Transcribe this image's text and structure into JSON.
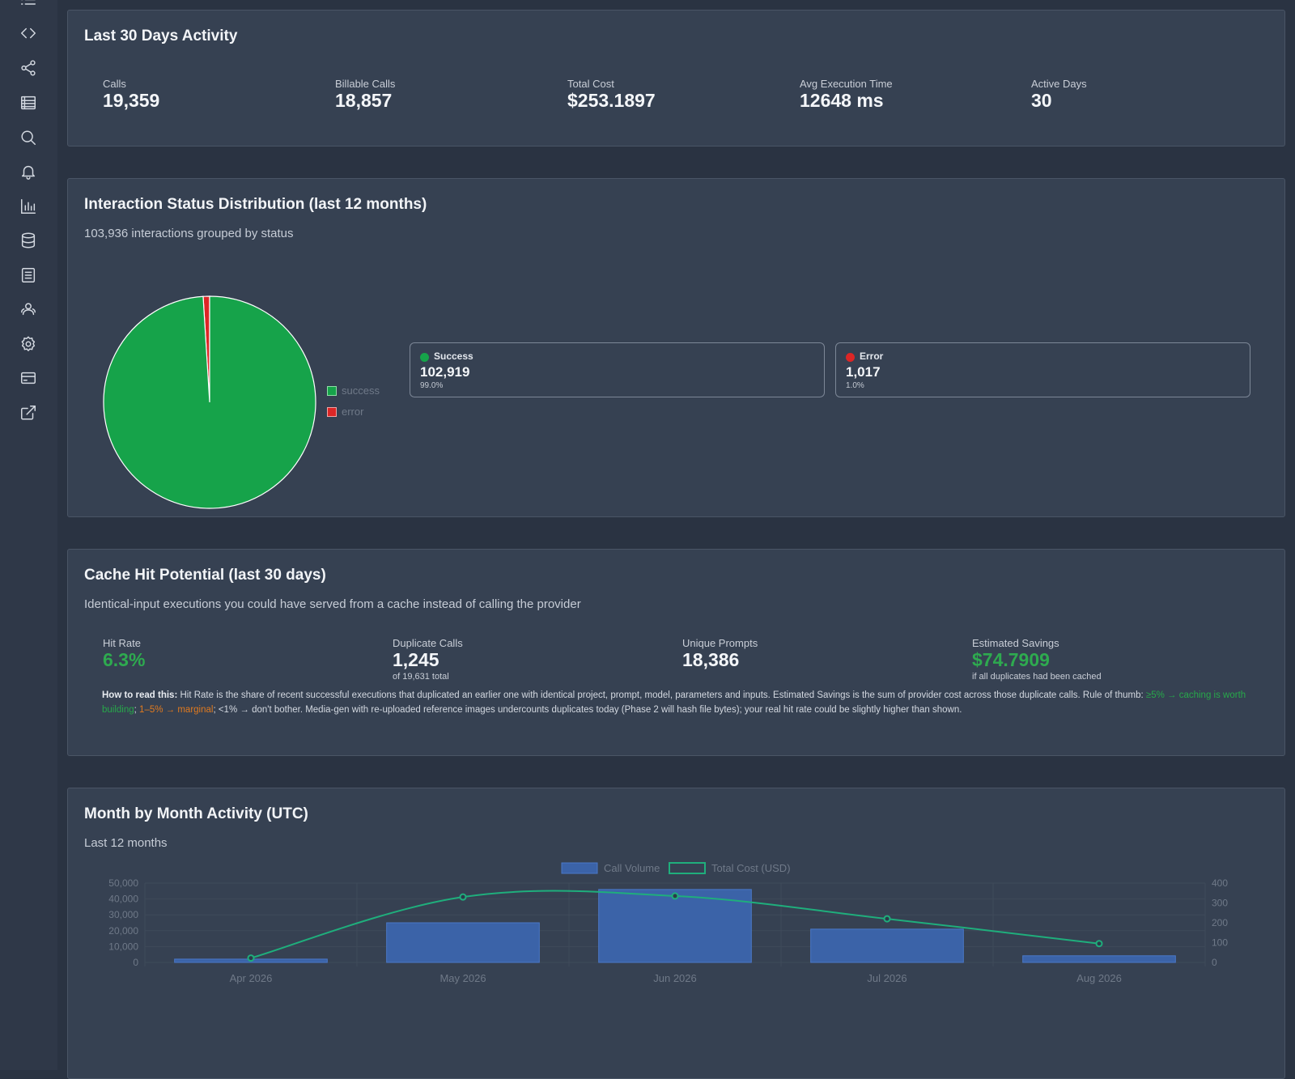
{
  "sidebar": {
    "icons": [
      "list-icon",
      "code-icon",
      "share-icon",
      "table-icon",
      "search-icon",
      "bell-icon",
      "bar-chart-icon",
      "database-icon",
      "document-icon",
      "users-icon",
      "settings-icon",
      "credit-card-icon",
      "external-link-icon"
    ]
  },
  "activity": {
    "title": "Last 30 Days Activity",
    "stats": [
      {
        "label": "Calls",
        "value": "19,359"
      },
      {
        "label": "Billable Calls",
        "value": "18,857"
      },
      {
        "label": "Total Cost",
        "value": "$253.1897"
      },
      {
        "label": "Avg Execution Time",
        "value": "12648 ms"
      },
      {
        "label": "Active Days",
        "value": "30"
      }
    ]
  },
  "status": {
    "title": "Interaction Status Distribution (last 12 months)",
    "subtitle": "103,936 interactions grouped by status",
    "legend": [
      "success",
      "error"
    ],
    "items": [
      {
        "name": "Success",
        "count": "102,919",
        "pct": "99.0%",
        "color": "#16a34a"
      },
      {
        "name": "Error",
        "count": "1,017",
        "pct": "1.0%",
        "color": "#dc2626"
      }
    ]
  },
  "cache": {
    "title": "Cache Hit Potential (last 30 days)",
    "subtitle": "Identical-input executions you could have served from a cache instead of calling the provider",
    "stats": [
      {
        "label": "Hit Rate",
        "value": "6.3%",
        "note": ""
      },
      {
        "label": "Duplicate Calls",
        "value": "1,245",
        "note": "of 19,631 total"
      },
      {
        "label": "Unique Prompts",
        "value": "18,386",
        "note": ""
      },
      {
        "label": "Estimated Savings",
        "value": "$74.7909",
        "note": "if all duplicates had been cached"
      }
    ],
    "howto": {
      "lead": "How to read this:",
      "body": " Hit Rate is the share of recent successful executions that duplicated an earlier one with identical project, prompt, model, parameters and inputs. Estimated Savings is the sum of provider cost across those duplicate calls. Rule of thumb: ",
      "green": "≥5% → caching is worth building",
      "sep1": "; ",
      "orange": "1–5% → marginal",
      "tail": "; <1% → don't bother. Media-gen with re-uploaded reference images undercounts duplicates today (Phase 2 will hash file bytes); your real hit rate could be slightly higher than shown."
    }
  },
  "monthly": {
    "title": "Month by Month Activity (UTC)",
    "subtitle": "Last 12 months"
  },
  "chart_data": [
    {
      "type": "pie",
      "labels": [
        "success",
        "error"
      ],
      "values": [
        102919,
        1017
      ],
      "colors": [
        "#16a34a",
        "#dc2626"
      ],
      "legend_position": "right"
    },
    {
      "type": "bar",
      "categories": [
        "Apr 2026",
        "May 2026",
        "Jun 2026",
        "Jul 2026",
        "Aug 2026"
      ],
      "series": [
        {
          "name": "Call Volume",
          "type": "bar",
          "axis": "left",
          "values": [
            2100,
            25000,
            46000,
            21000,
            4200
          ],
          "color": "#3b63a8"
        },
        {
          "name": "Total Cost (USD)",
          "type": "line",
          "axis": "right",
          "values": [
            22,
            330,
            335,
            220,
            95
          ],
          "color": "#1fae7c"
        }
      ],
      "y_left": {
        "min": 0,
        "max": 50000,
        "ticks": [
          "0",
          "10,000",
          "20,000",
          "30,000",
          "40,000",
          "50,000"
        ]
      },
      "y_right": {
        "min": 0,
        "max": 400,
        "ticks": [
          "0",
          "100",
          "200",
          "300",
          "400"
        ]
      },
      "legend_position": "top"
    }
  ]
}
